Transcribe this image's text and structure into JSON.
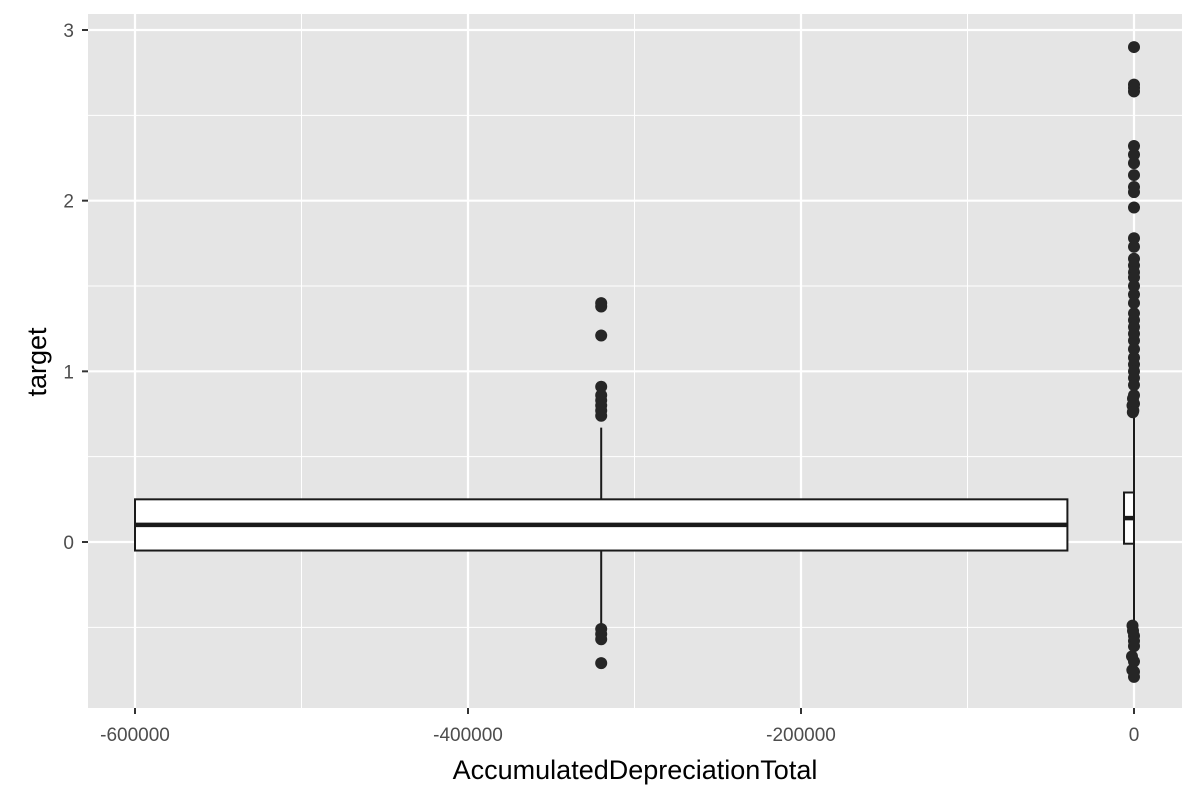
{
  "chart_data": {
    "type": "boxplot",
    "xlabel": "AccumulatedDepreciationTotal",
    "ylabel": "target",
    "xlim": [
      -600000,
      0
    ],
    "ylim": [
      -0.8,
      3
    ],
    "x_ticks": [
      {
        "value": -600000,
        "label": "-600000"
      },
      {
        "value": -400000,
        "label": "-400000"
      },
      {
        "value": -200000,
        "label": "-200000"
      },
      {
        "value": 0,
        "label": "0"
      }
    ],
    "y_ticks": [
      {
        "value": 0,
        "label": "0"
      },
      {
        "value": 1,
        "label": "1"
      },
      {
        "value": 2,
        "label": "2"
      },
      {
        "value": 3,
        "label": "3"
      }
    ],
    "grid": true,
    "background": "#e5e5e5",
    "grid_color": "#ffffff",
    "box_fill": "#ffffff",
    "line_color": "#1a1a1a",
    "point_color": "#262626",
    "boxes": [
      {
        "x_min": -600000,
        "x_max": -40000,
        "q1": -0.05,
        "median": 0.1,
        "q3": 0.25,
        "whisker_x": -320000,
        "whisker_low": -0.5,
        "whisker_high": 0.67,
        "outliers": [
          {
            "x": -320000,
            "y": 1.4
          },
          {
            "x": -320000,
            "y": 1.38
          },
          {
            "x": -320000,
            "y": 1.21
          },
          {
            "x": -320000,
            "y": 0.91
          },
          {
            "x": -320000,
            "y": 0.86
          },
          {
            "x": -320000,
            "y": 0.83
          },
          {
            "x": -320000,
            "y": 0.8
          },
          {
            "x": -320000,
            "y": 0.77
          },
          {
            "x": -320000,
            "y": 0.74
          },
          {
            "x": -320000,
            "y": -0.51
          },
          {
            "x": -320000,
            "y": -0.54
          },
          {
            "x": -320000,
            "y": -0.57
          },
          {
            "x": -320000,
            "y": -0.71
          }
        ]
      },
      {
        "x_min": -6000,
        "x_max": 0,
        "q1": -0.01,
        "median": 0.14,
        "q3": 0.29,
        "whisker_x": 0,
        "whisker_low": -0.48,
        "whisker_high": 0.78,
        "outliers": [
          {
            "x": 0,
            "y": 2.9
          },
          {
            "x": 0,
            "y": 2.68
          },
          {
            "x": 0,
            "y": 2.66
          },
          {
            "x": 0,
            "y": 2.64
          },
          {
            "x": 0,
            "y": 2.32
          },
          {
            "x": 0,
            "y": 2.27
          },
          {
            "x": 0,
            "y": 2.22
          },
          {
            "x": 0,
            "y": 2.15
          },
          {
            "x": 0,
            "y": 2.08
          },
          {
            "x": 0,
            "y": 2.05
          },
          {
            "x": 0,
            "y": 1.96
          },
          {
            "x": 0,
            "y": 1.78
          },
          {
            "x": 0,
            "y": 1.73
          },
          {
            "x": 0,
            "y": 1.66
          },
          {
            "x": 0,
            "y": 1.62
          },
          {
            "x": 0,
            "y": 1.58
          },
          {
            "x": 0,
            "y": 1.55
          },
          {
            "x": 0,
            "y": 1.5
          },
          {
            "x": 0,
            "y": 1.45
          },
          {
            "x": 0,
            "y": 1.4
          },
          {
            "x": 0,
            "y": 1.34
          },
          {
            "x": 0,
            "y": 1.3
          },
          {
            "x": 0,
            "y": 1.26
          },
          {
            "x": 0,
            "y": 1.22
          },
          {
            "x": 0,
            "y": 1.18
          },
          {
            "x": 0,
            "y": 1.13
          },
          {
            "x": 0,
            "y": 1.08
          },
          {
            "x": 0,
            "y": 1.04
          },
          {
            "x": 0,
            "y": 1.0
          },
          {
            "x": 0,
            "y": 0.96
          },
          {
            "x": 0,
            "y": 0.92
          },
          {
            "x": 0,
            "y": 0.86
          },
          {
            "x": 0,
            "y": 0.81
          },
          {
            "x": -600,
            "y": 0.84
          },
          {
            "x": -900,
            "y": 0.8
          },
          {
            "x": -400,
            "y": 0.77
          },
          {
            "x": -700,
            "y": 0.76
          },
          {
            "x": -900,
            "y": -0.49
          },
          {
            "x": -600,
            "y": -0.52
          },
          {
            "x": 0,
            "y": -0.55
          },
          {
            "x": 0,
            "y": -0.58
          },
          {
            "x": 0,
            "y": -0.61
          },
          {
            "x": -1200,
            "y": -0.67
          },
          {
            "x": 0,
            "y": -0.7
          },
          {
            "x": -1000,
            "y": -0.75
          },
          {
            "x": 0,
            "y": -0.76
          },
          {
            "x": 0,
            "y": -0.79
          }
        ]
      }
    ]
  }
}
